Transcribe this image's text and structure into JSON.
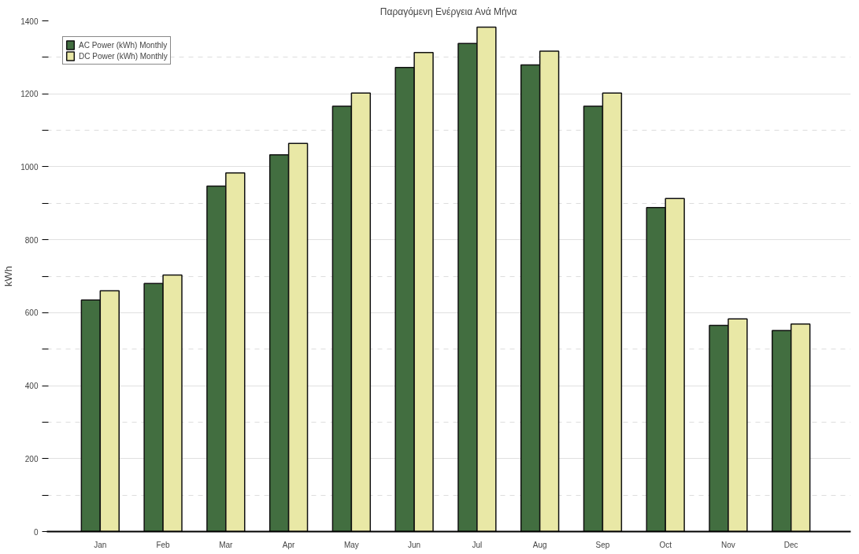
{
  "chart_data": {
    "type": "bar",
    "title": "Παραγόμενη Ενέργεια Ανά Μήνα",
    "ylabel": "kWh",
    "categories": [
      "Jan",
      "Feb",
      "Mar",
      "Apr",
      "May",
      "Jun",
      "Jul",
      "Aug",
      "Sep",
      "Oct",
      "Nov",
      "Dec"
    ],
    "series": [
      {
        "name": "AC Power (kWh) Monthly",
        "color": "#426e40",
        "values": [
          635,
          680,
          947,
          1033,
          1166,
          1272,
          1338,
          1279,
          1166,
          888,
          565,
          551
        ]
      },
      {
        "name": "DC Power (kWh) Monthly",
        "color": "#e9e8a6",
        "values": [
          660,
          703,
          983,
          1064,
          1202,
          1313,
          1383,
          1317,
          1202,
          913,
          583,
          569
        ]
      }
    ],
    "ylim": [
      0,
      1400
    ],
    "yticks": [
      0,
      {
        "value": 100,
        "label": null
      },
      200,
      {
        "value": 300,
        "label": null
      },
      400,
      {
        "value": 500,
        "label": null
      },
      600,
      {
        "value": 700,
        "label": null
      },
      800,
      {
        "value": 900,
        "label": null
      },
      1000,
      {
        "value": 1100,
        "label": null
      },
      1200,
      {
        "value": 1300,
        "label": null
      },
      1400
    ],
    "grid": "y",
    "legend": "top left"
  }
}
